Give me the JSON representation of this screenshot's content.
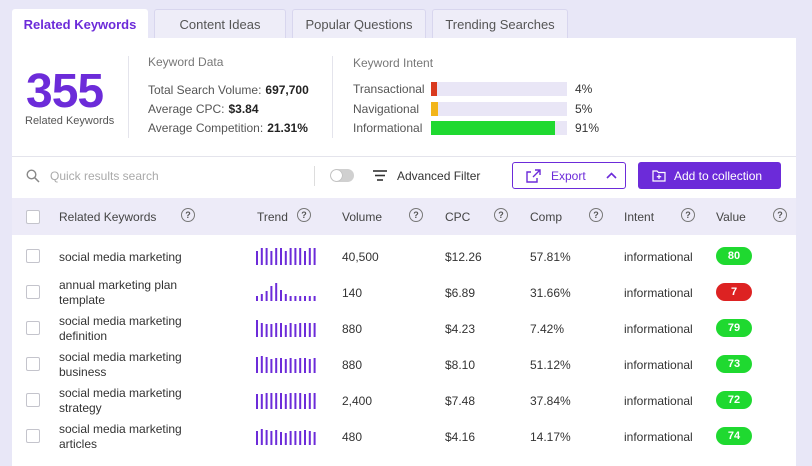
{
  "tabs": [
    {
      "label": "Related Keywords",
      "active": true
    },
    {
      "label": "Content Ideas",
      "active": false
    },
    {
      "label": "Popular Questions",
      "active": false
    },
    {
      "label": "Trending Searches",
      "active": false
    }
  ],
  "summary": {
    "count": "355",
    "count_label": "Related Keywords",
    "keyword_data": {
      "title": "Keyword Data",
      "total_search_volume_label": "Total Search Volume:",
      "total_search_volume": "697,700",
      "avg_cpc_label": "Average CPC:",
      "avg_cpc": "$3.84",
      "avg_comp_label": "Average Competition:",
      "avg_comp": "21.31%"
    },
    "keyword_intent": {
      "title": "Keyword Intent",
      "items": [
        {
          "label": "Transactional",
          "pct": "4%",
          "value": 0.04,
          "color": "#d93a1f"
        },
        {
          "label": "Navigational",
          "pct": "5%",
          "value": 0.05,
          "color": "#f2b51a"
        },
        {
          "label": "Informational",
          "pct": "91%",
          "value": 0.91,
          "color": "#1fd930"
        }
      ]
    }
  },
  "toolbar": {
    "search_placeholder": "Quick results search",
    "advanced_filter_label": "Advanced Filter",
    "export_label": "Export",
    "add_label": "Add to collection"
  },
  "table": {
    "headers": {
      "keyword": "Related Keywords",
      "trend": "Trend",
      "volume": "Volume",
      "cpc": "CPC",
      "comp": "Comp",
      "intent": "Intent",
      "value": "Value"
    },
    "rows": [
      {
        "keyword": "social media marketing",
        "volume": "40,500",
        "cpc": "$12.26",
        "comp": "57.81%",
        "intent": "informational",
        "value": "80",
        "value_color": "#1fd930",
        "trend": [
          0.75,
          0.95,
          0.95,
          0.75,
          0.95,
          0.95,
          0.75,
          0.95,
          0.95,
          0.95,
          0.75,
          0.95,
          0.95
        ]
      },
      {
        "keyword": "annual marketing plan template",
        "volume": "140",
        "cpc": "$6.89",
        "comp": "31.66%",
        "intent": "informational",
        "value": "7",
        "value_color": "#d22",
        "trend": [
          0.3,
          0.4,
          0.55,
          0.85,
          1.0,
          0.6,
          0.4,
          0.3,
          0.25,
          0.25,
          0.25,
          0.25,
          0.25
        ]
      },
      {
        "keyword": "social media marketing definition",
        "volume": "880",
        "cpc": "$4.23",
        "comp": "7.42%",
        "intent": "informational",
        "value": "79",
        "value_color": "#1fd930",
        "trend": [
          0.95,
          0.8,
          0.7,
          0.7,
          0.75,
          0.8,
          0.65,
          0.75,
          0.7,
          0.75,
          0.8,
          0.75,
          0.75
        ]
      },
      {
        "keyword": "social media marketing business",
        "volume": "880",
        "cpc": "$8.10",
        "comp": "51.12%",
        "intent": "informational",
        "value": "73",
        "value_color": "#1fd930",
        "trend": [
          0.9,
          0.95,
          0.9,
          0.75,
          0.85,
          0.85,
          0.8,
          0.85,
          0.8,
          0.85,
          0.85,
          0.8,
          0.85
        ]
      },
      {
        "keyword": "social media marketing strategy",
        "volume": "2,400",
        "cpc": "$7.48",
        "comp": "37.84%",
        "intent": "informational",
        "value": "72",
        "value_color": "#1fd930",
        "trend": [
          0.85,
          0.85,
          0.9,
          0.9,
          0.9,
          0.9,
          0.85,
          0.9,
          0.9,
          0.9,
          0.85,
          0.9,
          0.9
        ]
      },
      {
        "keyword": "social media marketing articles",
        "volume": "480",
        "cpc": "$4.16",
        "comp": "14.17%",
        "intent": "informational",
        "value": "74",
        "value_color": "#1fd930",
        "trend": [
          0.8,
          0.9,
          0.85,
          0.75,
          0.85,
          0.7,
          0.65,
          0.75,
          0.8,
          0.75,
          0.85,
          0.75,
          0.7
        ]
      }
    ]
  }
}
